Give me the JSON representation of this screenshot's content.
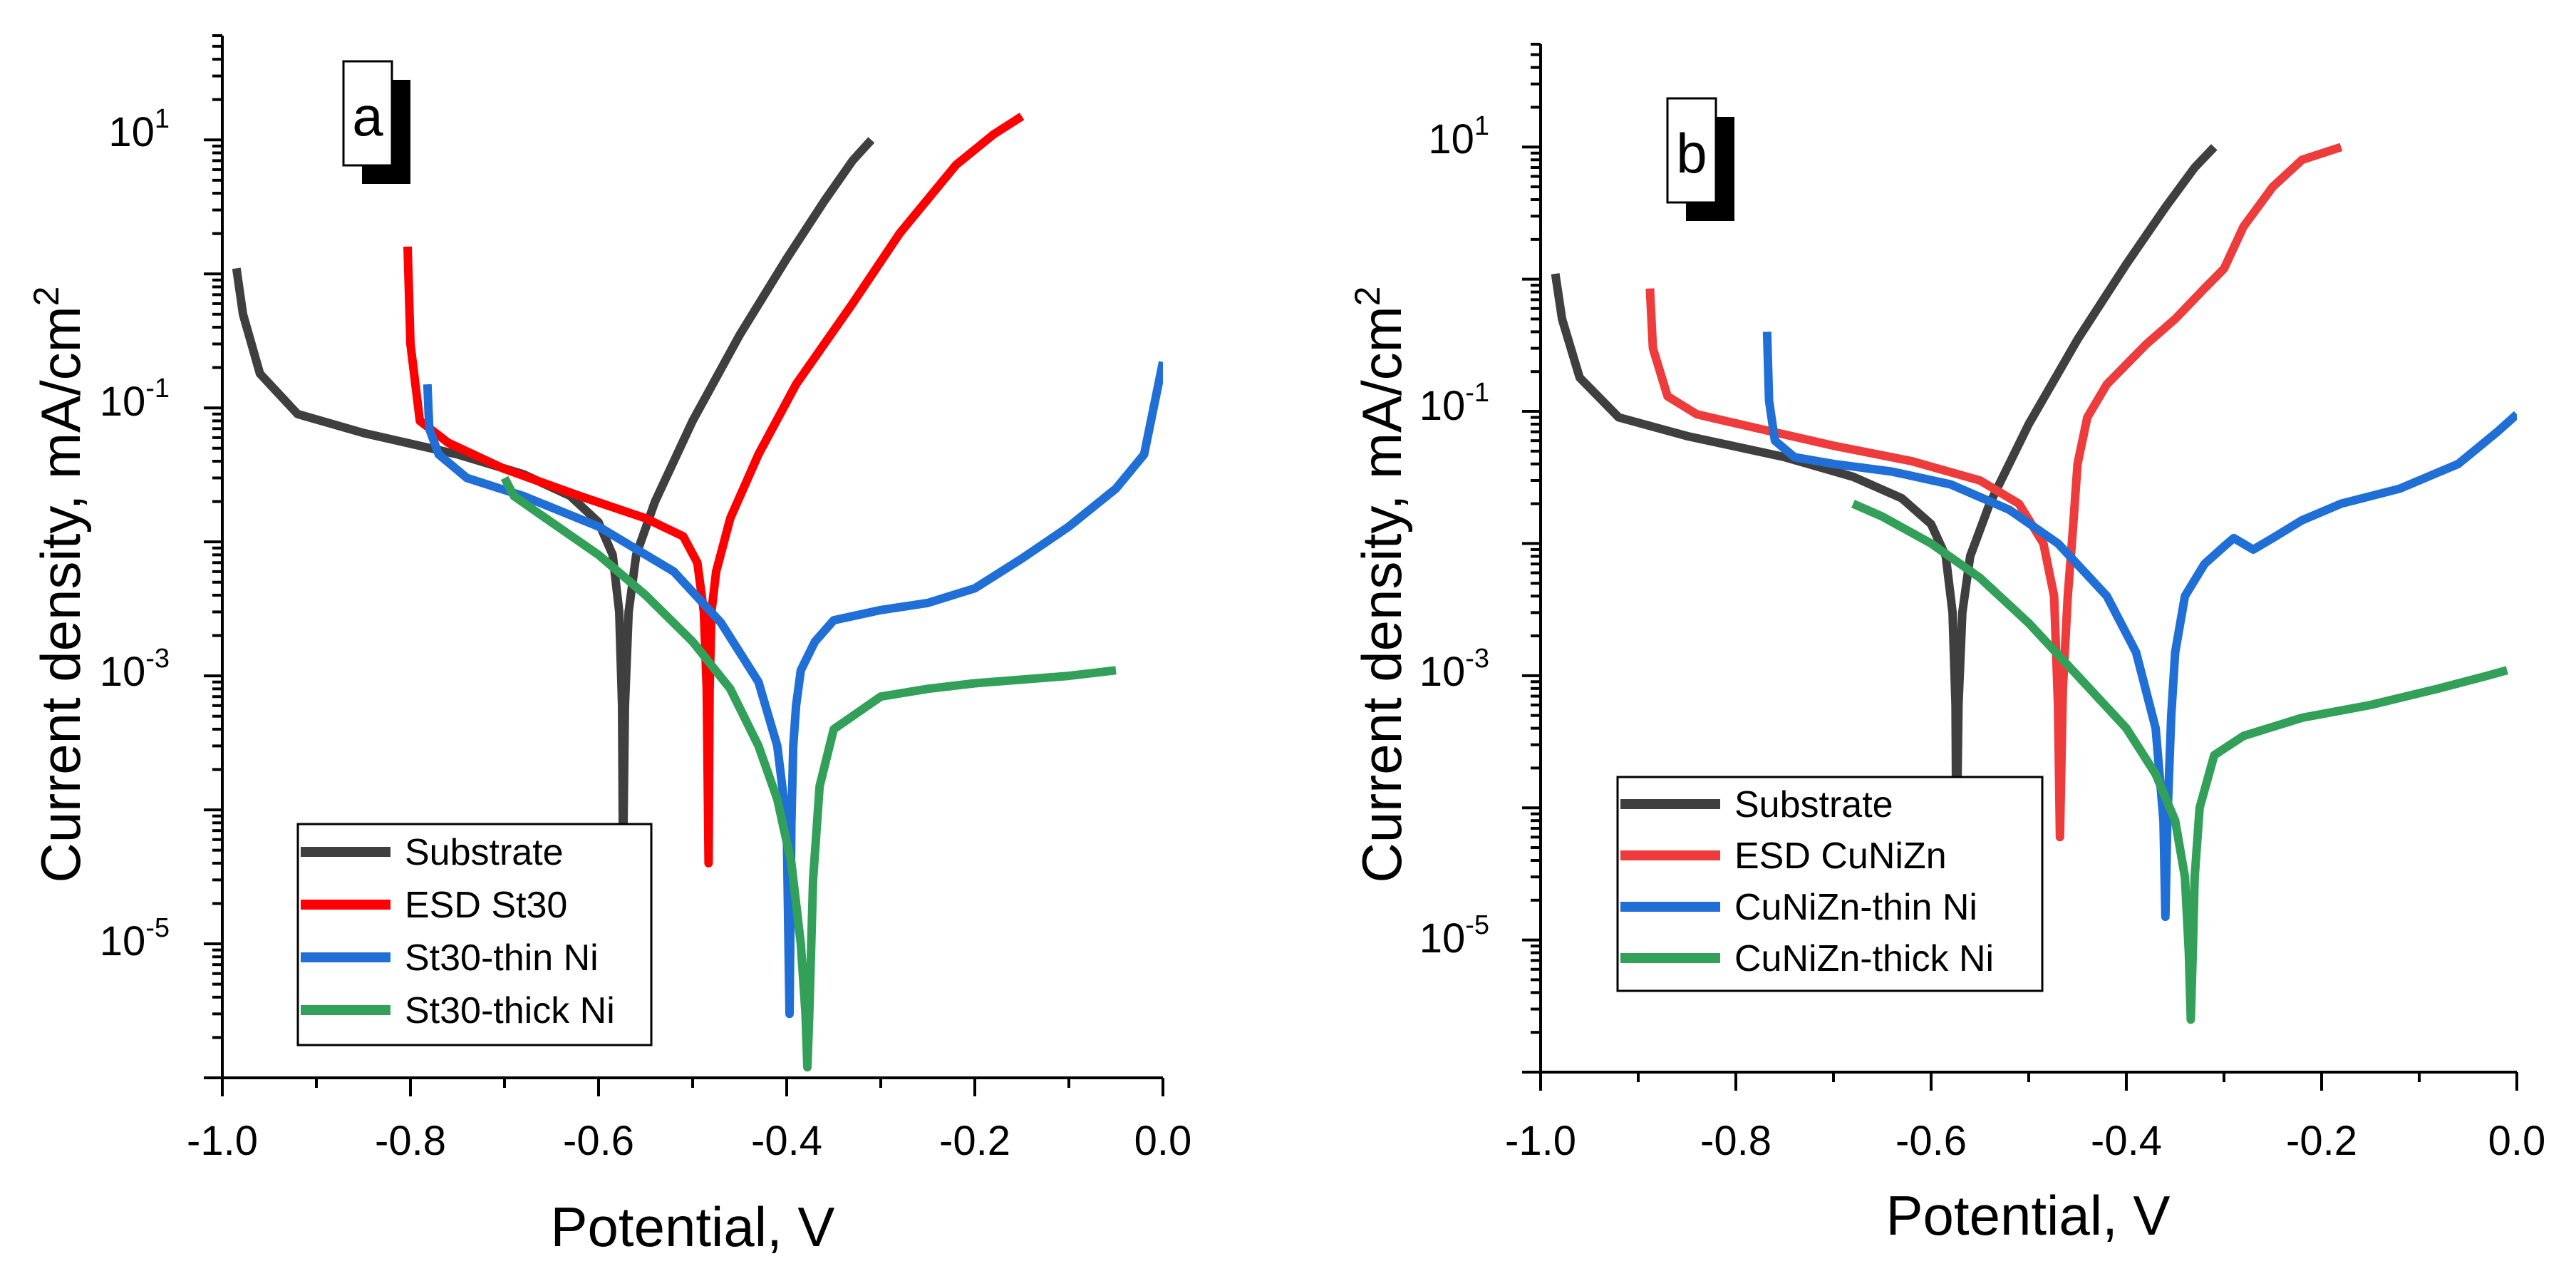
{
  "chart_data": [
    {
      "type": "line",
      "panel_label": "a",
      "xlabel": "Potential, V",
      "ylabel": "Current density, mA/cm",
      "ylabel_sup": "2",
      "xlim": [
        -1.0,
        0.0
      ],
      "ylim": [
        1e-06,
        60
      ],
      "y_scale": "log",
      "x_ticks": [
        "-1.0",
        "-0.8",
        "-0.6",
        "-0.4",
        "-0.2",
        "0.0"
      ],
      "y_ticks": [
        {
          "base": "10",
          "exp": "1",
          "value": 10
        },
        {
          "base": "10",
          "exp": "-1",
          "value": 0.1
        },
        {
          "base": "10",
          "exp": "-3",
          "value": 0.001
        },
        {
          "base": "10",
          "exp": "-5",
          "value": 1e-05
        }
      ],
      "grid": false,
      "legend_position": "bottom-left",
      "series": [
        {
          "name": "Substrate",
          "color": "#3f3f3f",
          "x": [
            -0.985,
            -0.978,
            -0.96,
            -0.92,
            -0.85,
            -0.75,
            -0.68,
            -0.63,
            -0.6,
            -0.585,
            -0.578,
            -0.575,
            -0.574,
            -0.572,
            -0.568,
            -0.56,
            -0.54,
            -0.5,
            -0.45,
            -0.4,
            -0.36,
            -0.33,
            -0.31
          ],
          "y": [
            1.1,
            0.5,
            0.18,
            0.09,
            0.065,
            0.045,
            0.032,
            0.022,
            0.014,
            0.008,
            0.003,
            0.0006,
            4e-05,
            0.0006,
            0.003,
            0.008,
            0.02,
            0.08,
            0.35,
            1.3,
            3.5,
            7.0,
            10.0
          ]
        },
        {
          "name": "ESD St30",
          "color": "#ff0000",
          "x": [
            -0.803,
            -0.8,
            -0.79,
            -0.76,
            -0.7,
            -0.62,
            -0.55,
            -0.51,
            -0.495,
            -0.488,
            -0.485,
            -0.483,
            -0.482,
            -0.48,
            -0.475,
            -0.46,
            -0.43,
            -0.39,
            -0.33,
            -0.28,
            -0.22,
            -0.18,
            -0.15
          ],
          "y": [
            1.6,
            0.3,
            0.08,
            0.055,
            0.035,
            0.022,
            0.015,
            0.011,
            0.007,
            0.003,
            0.0008,
            4e-05,
            0.0008,
            0.003,
            0.006,
            0.015,
            0.045,
            0.15,
            0.6,
            2.0,
            6.5,
            11.0,
            15.0
          ]
        },
        {
          "name": "St30-thin Ni",
          "color": "#1f6fd6",
          "x": [
            -0.782,
            -0.78,
            -0.77,
            -0.74,
            -0.68,
            -0.6,
            -0.52,
            -0.47,
            -0.43,
            -0.41,
            -0.4,
            -0.397,
            -0.395,
            -0.393,
            -0.39,
            -0.385,
            -0.37,
            -0.35,
            -0.3,
            -0.25,
            -0.2,
            -0.15,
            -0.1,
            -0.05,
            -0.02,
            0.0
          ],
          "y": [
            0.15,
            0.07,
            0.045,
            0.03,
            0.022,
            0.013,
            0.006,
            0.0025,
            0.0009,
            0.0003,
            8e-05,
            3e-06,
            8e-05,
            0.0003,
            0.0006,
            0.0011,
            0.0018,
            0.0026,
            0.0031,
            0.0035,
            0.0045,
            0.0075,
            0.013,
            0.025,
            0.045,
            0.22
          ]
        },
        {
          "name": "St30-thick Ni",
          "color": "#33a05a",
          "x": [
            -0.7,
            -0.69,
            -0.65,
            -0.6,
            -0.55,
            -0.5,
            -0.46,
            -0.43,
            -0.41,
            -0.395,
            -0.385,
            -0.38,
            -0.378,
            -0.376,
            -0.372,
            -0.365,
            -0.35,
            -0.3,
            -0.25,
            -0.2,
            -0.1,
            -0.05
          ],
          "y": [
            0.03,
            0.022,
            0.014,
            0.008,
            0.004,
            0.0018,
            0.0008,
            0.0003,
            0.00012,
            4e-05,
            1e-05,
            3e-06,
            1.2e-06,
            3e-06,
            3e-05,
            0.00015,
            0.0004,
            0.0007,
            0.0008,
            0.00088,
            0.001,
            0.0011
          ]
        }
      ]
    },
    {
      "type": "line",
      "panel_label": "b",
      "xlabel": "Potential, V",
      "ylabel": "Current density, mA/cm",
      "ylabel_sup": "2",
      "xlim": [
        -1.0,
        0.0
      ],
      "ylim": [
        1e-06,
        60
      ],
      "y_scale": "log",
      "x_ticks": [
        "-1.0",
        "-0.8",
        "-0.6",
        "-0.4",
        "-0.2",
        "0.0"
      ],
      "y_ticks": [
        {
          "base": "10",
          "exp": "1",
          "value": 10
        },
        {
          "base": "10",
          "exp": "-1",
          "value": 0.1
        },
        {
          "base": "10",
          "exp": "-3",
          "value": 0.001
        },
        {
          "base": "10",
          "exp": "-5",
          "value": 1e-05
        }
      ],
      "grid": false,
      "legend_position": "bottom-left",
      "series": [
        {
          "name": "Substrate",
          "color": "#3f3f3f",
          "x": [
            -0.985,
            -0.978,
            -0.96,
            -0.92,
            -0.85,
            -0.75,
            -0.68,
            -0.63,
            -0.6,
            -0.585,
            -0.578,
            -0.575,
            -0.574,
            -0.572,
            -0.568,
            -0.56,
            -0.54,
            -0.5,
            -0.45,
            -0.4,
            -0.36,
            -0.33,
            -0.31
          ],
          "y": [
            1.1,
            0.5,
            0.18,
            0.09,
            0.065,
            0.045,
            0.032,
            0.022,
            0.014,
            0.008,
            0.003,
            0.0006,
            4e-05,
            0.0006,
            0.003,
            0.008,
            0.02,
            0.08,
            0.35,
            1.3,
            3.5,
            7.0,
            10.0
          ]
        },
        {
          "name": "ESD CuNiZn",
          "color": "#ee3b3b",
          "x": [
            -0.888,
            -0.885,
            -0.87,
            -0.84,
            -0.78,
            -0.7,
            -0.62,
            -0.55,
            -0.51,
            -0.485,
            -0.474,
            -0.47,
            -0.468,
            -0.465,
            -0.46,
            -0.455,
            -0.45,
            -0.44,
            -0.42,
            -0.38,
            -0.35,
            -0.32,
            -0.3,
            -0.28,
            -0.25,
            -0.22,
            -0.18
          ],
          "y": [
            0.85,
            0.3,
            0.13,
            0.095,
            0.075,
            0.055,
            0.042,
            0.03,
            0.02,
            0.01,
            0.004,
            0.0006,
            6e-05,
            0.0008,
            0.004,
            0.012,
            0.04,
            0.09,
            0.16,
            0.32,
            0.5,
            0.85,
            1.2,
            2.5,
            5.0,
            8.0,
            10.0
          ]
        },
        {
          "name": "CuNiZn-thin Ni",
          "color": "#1f6fd6",
          "x": [
            -0.768,
            -0.766,
            -0.76,
            -0.74,
            -0.7,
            -0.64,
            -0.58,
            -0.52,
            -0.47,
            -0.42,
            -0.39,
            -0.37,
            -0.362,
            -0.36,
            -0.358,
            -0.354,
            -0.35,
            -0.34,
            -0.32,
            -0.3,
            -0.29,
            -0.27,
            -0.25,
            -0.22,
            -0.18,
            -0.12,
            -0.06,
            -0.02,
            0.0
          ],
          "y": [
            0.4,
            0.12,
            0.06,
            0.045,
            0.04,
            0.035,
            0.028,
            0.018,
            0.01,
            0.004,
            0.0015,
            0.0004,
            8e-05,
            1.5e-05,
            8e-05,
            0.0005,
            0.0015,
            0.004,
            0.007,
            0.0095,
            0.011,
            0.009,
            0.011,
            0.015,
            0.02,
            0.026,
            0.04,
            0.07,
            0.095
          ]
        },
        {
          "name": "CuNiZn-thick Ni",
          "color": "#33a05a",
          "x": [
            -0.68,
            -0.65,
            -0.6,
            -0.55,
            -0.5,
            -0.45,
            -0.4,
            -0.37,
            -0.35,
            -0.34,
            -0.336,
            -0.334,
            -0.332,
            -0.33,
            -0.325,
            -0.31,
            -0.28,
            -0.22,
            -0.15,
            -0.08,
            -0.03,
            -0.01
          ],
          "y": [
            0.02,
            0.016,
            0.01,
            0.0055,
            0.0025,
            0.001,
            0.0004,
            0.00018,
            8e-05,
            3e-05,
            8e-06,
            2.5e-06,
            8e-06,
            3e-05,
            0.0001,
            0.00025,
            0.00035,
            0.00048,
            0.0006,
            0.0008,
            0.001,
            0.0011
          ]
        }
      ]
    }
  ]
}
